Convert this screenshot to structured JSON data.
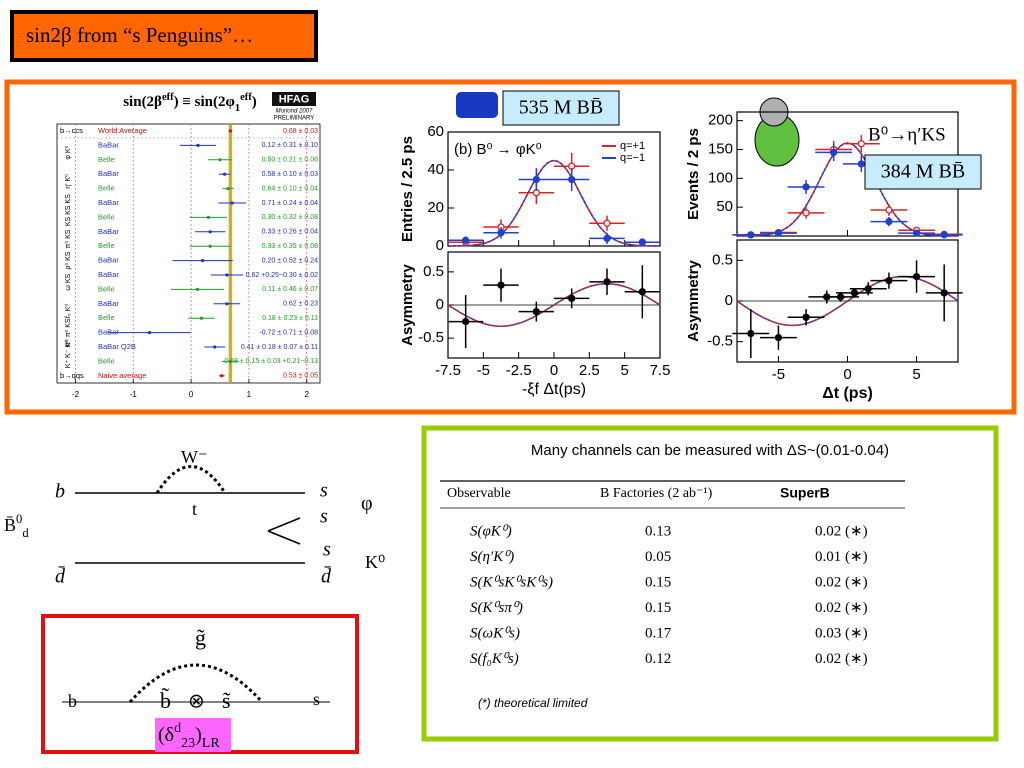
{
  "title": "sin2β from “s Penguins”…",
  "hfag": {
    "heading": [
      "sin(2β",
      "eff",
      ") ≡ sin(2φ",
      "1",
      "eff",
      ")"
    ],
    "logo": "HFAG",
    "logo_sub": "Moriond 2007",
    "logo_note": "PRELIMINARY",
    "xlim": [
      -2.32,
      2.23
    ],
    "xticks": [
      -2,
      -1,
      0,
      1,
      2
    ],
    "groups": [
      {
        "label": "b→ccs",
        "entries": [
          {
            "exp": "World Average",
            "color": "#d01010",
            "value_label": "0.68 ± 0.03",
            "value": 0.68,
            "err": 0.03
          }
        ]
      },
      {
        "label": "φ K⁰",
        "entries": [
          {
            "exp": "BaBar",
            "color": "#2030c0",
            "value_label": "0.12 ± 0.31 ± 0.10",
            "value": 0.12,
            "err": 0.31
          },
          {
            "exp": "Belle",
            "color": "#20a020",
            "value_label": "0.50 ± 0.21 ± 0.06",
            "value": 0.5,
            "err": 0.21
          }
        ]
      },
      {
        "label": "η′ K⁰",
        "entries": [
          {
            "exp": "BaBar",
            "color": "#2030c0",
            "value_label": "0.58 ± 0.10 ± 0.03",
            "value": 0.58,
            "err": 0.1
          },
          {
            "exp": "Belle",
            "color": "#20a020",
            "value_label": "0.64 ± 0.10 ± 0.04",
            "value": 0.64,
            "err": 0.1
          }
        ]
      },
      {
        "label": "KS KS KS",
        "entries": [
          {
            "exp": "BaBar",
            "color": "#2030c0",
            "value_label": "0.71 ± 0.24 ± 0.04",
            "value": 0.71,
            "err": 0.24
          },
          {
            "exp": "Belle",
            "color": "#20a020",
            "value_label": "0.30 ± 0.32 ± 0.08",
            "value": 0.3,
            "err": 0.32
          }
        ]
      },
      {
        "label": "π⁰ KS",
        "entries": [
          {
            "exp": "BaBar",
            "color": "#2030c0",
            "value_label": "0.33 ± 0.26 ± 0.04",
            "value": 0.33,
            "err": 0.26
          },
          {
            "exp": "Belle",
            "color": "#20a020",
            "value_label": "0.33 ± 0.35 ± 0.08",
            "value": 0.33,
            "err": 0.35
          }
        ]
      },
      {
        "label": "ρ⁰ KS",
        "entries": [
          {
            "exp": "BaBar",
            "color": "#2030c0",
            "value_label": "0.20 ± 0.52 ± 0.24",
            "value": 0.2,
            "err": 0.52
          }
        ]
      },
      {
        "label": "ω KS",
        "entries": [
          {
            "exp": "BaBar",
            "color": "#2030c0",
            "value_label": "0.62 +0.25−0.30 ± 0.02",
            "value": 0.62,
            "err": 0.28
          },
          {
            "exp": "Belle",
            "color": "#20a020",
            "value_label": "0.11 ± 0.46 ± 0.07",
            "value": 0.11,
            "err": 0.46
          }
        ]
      },
      {
        "label": "f₀ K⁰",
        "entries": [
          {
            "exp": "BaBar",
            "color": "#2030c0",
            "value_label": "0.62 ± 0.23",
            "value": 0.62,
            "err": 0.23
          },
          {
            "exp": "Belle",
            "color": "#20a020",
            "value_label": "0.18 ± 0.23 ± 0.11",
            "value": 0.18,
            "err": 0.23
          }
        ]
      },
      {
        "label": "π⁰ π⁰ KS",
        "entries": [
          {
            "exp": "BaBar",
            "color": "#2030c0",
            "value_label": "-0.72 ± 0.71 ± 0.08",
            "value": -0.72,
            "err": 0.71
          }
        ]
      },
      {
        "label": "K⁺ K⁻ K⁰",
        "entries": [
          {
            "exp": "BaBar Q2B",
            "color": "#2030c0",
            "value_label": "0.41 ± 0.18 ± 0.07 ± 0.11",
            "value": 0.41,
            "err": 0.18
          },
          {
            "exp": "Belle",
            "color": "#20a020",
            "value_label": "0.68 ± 0.15 ± 0.03 +0.21−0.13",
            "value": 0.68,
            "err": 0.15
          }
        ]
      },
      {
        "label": "b→qqs",
        "entries": [
          {
            "exp": "Naive average",
            "color": "#d01010",
            "value_label": "0.53 ± 0.05",
            "value": 0.53,
            "err": 0.05
          }
        ]
      }
    ]
  },
  "phi_plot": {
    "banner": "535 M BB̄",
    "label": "(b) B⁰ → φK⁰",
    "xlabel": "-ξf Δt(ps)",
    "xlim": [
      -7.5,
      7.5
    ],
    "xticks": [
      -7.5,
      -5,
      -2.5,
      0,
      2.5,
      5,
      7.5
    ],
    "top": {
      "ylabel": "Entries / 2.5 ps",
      "ylim": [
        0,
        60
      ],
      "yticks": [
        0,
        20,
        40,
        60
      ],
      "series": [
        {
          "name": "q=+1",
          "color": "#e02020",
          "x": [
            -6.25,
            -3.75,
            -1.25,
            1.25,
            3.75,
            6.25
          ],
          "values": [
            2,
            10,
            28,
            42,
            12,
            2
          ],
          "err": [
            2,
            4,
            6,
            7,
            4,
            2
          ]
        },
        {
          "name": "q=−1",
          "color": "#2040d0",
          "x": [
            -6.25,
            -3.75,
            -1.25,
            1.25,
            3.75,
            6.25
          ],
          "values": [
            3,
            7,
            35,
            35,
            4,
            2
          ],
          "err": [
            2,
            3,
            6,
            6,
            3,
            2
          ]
        }
      ]
    },
    "bottom": {
      "ylabel": "Asymmetry",
      "ylim": [
        -0.8,
        0.8
      ],
      "yticks": [
        -0.5,
        0,
        0.5
      ],
      "series": [
        {
          "color": "#000000",
          "x": [
            -6.25,
            -3.75,
            -1.25,
            1.25,
            3.75,
            6.25
          ],
          "values": [
            -0.25,
            0.3,
            -0.1,
            0.1,
            0.35,
            0.2
          ],
          "err": [
            0.4,
            0.25,
            0.15,
            0.15,
            0.2,
            0.4
          ]
        }
      ]
    }
  },
  "eta_plot": {
    "banner": "384 M BB̄",
    "label": "B⁰→η′KS",
    "xlabel": "Δt (ps)",
    "xlim": [
      -8,
      8
    ],
    "xticks": [
      -5,
      0,
      5
    ],
    "top": {
      "ylabel": "Events / 2 ps",
      "ylim": [
        0,
        215
      ],
      "yticks": [
        50,
        100,
        150,
        200
      ],
      "series": [
        {
          "color": "#e02020",
          "x": [
            -7,
            -5,
            -3,
            -1,
            1,
            3,
            5,
            7
          ],
          "values": [
            2,
            6,
            40,
            150,
            160,
            45,
            10,
            3
          ],
          "err": [
            2,
            4,
            10,
            15,
            15,
            10,
            5,
            2
          ]
        },
        {
          "color": "#2040d0",
          "x": [
            -7,
            -5,
            -3,
            -1,
            1,
            3,
            5,
            7
          ],
          "values": [
            2,
            5,
            85,
            145,
            125,
            25,
            5,
            2
          ],
          "err": [
            2,
            4,
            12,
            15,
            14,
            8,
            4,
            2
          ]
        }
      ]
    },
    "bottom": {
      "ylabel": "Asymmetry",
      "ylim": [
        -0.75,
        0.75
      ],
      "yticks": [
        -0.5,
        0,
        0.5
      ],
      "series": [
        {
          "color": "#000000",
          "x": [
            -7,
            -5,
            -3,
            -1.5,
            -0.5,
            0.5,
            1.5,
            3,
            5,
            7
          ],
          "values": [
            -0.4,
            -0.45,
            -0.2,
            0.05,
            0.05,
            0.1,
            0.15,
            0.25,
            0.3,
            0.1
          ],
          "err": [
            0.3,
            0.15,
            0.1,
            0.08,
            0.06,
            0.06,
            0.08,
            0.1,
            0.2,
            0.35
          ]
        }
      ]
    }
  },
  "diagram": {
    "w": "W⁻",
    "b": "b",
    "t": "t",
    "s1": "s",
    "s2": "s",
    "phi": "φ",
    "meson": [
      "B̄",
      "0",
      "d"
    ],
    "dbar1": "d̄",
    "s3": "s",
    "dbar2": "d̄",
    "k0": "K⁰"
  },
  "susy": {
    "gluino": "g̃",
    "b": "b",
    "sbottom": "b̃",
    "insertion": "⊗",
    "sstrange": "s̃",
    "s": "s",
    "delta": [
      "(δ",
      "d",
      "23",
      ")",
      "LR"
    ]
  },
  "table": {
    "caption": "Many channels can be measured with ΔS~(0.01-0.04)",
    "header": [
      "Observable",
      "B Factories (2 ab⁻¹)",
      "SuperB"
    ],
    "rows": [
      [
        "S(φK⁰)",
        "0.13",
        "0.02 (∗)"
      ],
      [
        "S(η′K⁰)",
        "0.05",
        "0.01 (∗)"
      ],
      [
        "S(K⁰sK⁰sK⁰s)",
        "0.15",
        "0.02 (∗)"
      ],
      [
        "S(K⁰sπ⁰)",
        "0.15",
        "0.02 (∗)"
      ],
      [
        "S(ωK⁰s)",
        "0.17",
        "0.03 (∗)"
      ],
      [
        "S(f₀K⁰s)",
        "0.12",
        "0.02 (∗)"
      ]
    ],
    "note": "(*) theoretical limited"
  }
}
